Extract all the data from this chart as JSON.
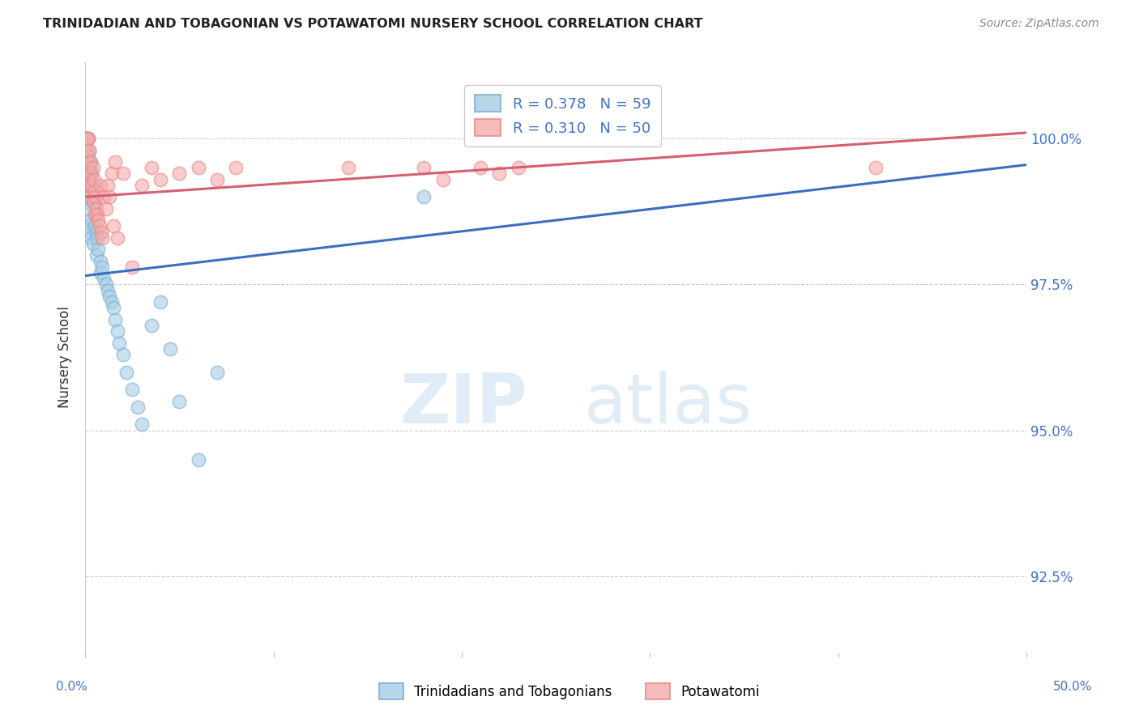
{
  "title": "TRINIDADIAN AND TOBAGONIAN VS POTAWATOMI NURSERY SCHOOL CORRELATION CHART",
  "source": "Source: ZipAtlas.com",
  "ylabel": "Nursery School",
  "ytick_vals": [
    92.5,
    95.0,
    97.5,
    100.0
  ],
  "xmin": 0.0,
  "xmax": 50.0,
  "ymin": 91.2,
  "ymax": 101.3,
  "legend_blue_label": "Trinidadians and Tobagonians",
  "legend_pink_label": "Potawatomi",
  "legend_R_blue": "R = 0.378",
  "legend_N_blue": "N = 59",
  "legend_R_pink": "R = 0.310",
  "legend_N_pink": "N = 50",
  "blue_color": "#a8cce4",
  "pink_color": "#f4aaaa",
  "blue_edge_color": "#7bafd4",
  "pink_edge_color": "#e88888",
  "blue_line_color": "#3a6fbf",
  "pink_line_color": "#d45f72",
  "blue_scatter_x": [
    0.05,
    0.05,
    0.05,
    0.05,
    0.05,
    0.1,
    0.1,
    0.1,
    0.1,
    0.15,
    0.15,
    0.15,
    0.15,
    0.2,
    0.2,
    0.2,
    0.2,
    0.25,
    0.25,
    0.25,
    0.3,
    0.3,
    0.3,
    0.35,
    0.35,
    0.4,
    0.4,
    0.45,
    0.5,
    0.5,
    0.55,
    0.6,
    0.6,
    0.65,
    0.7,
    0.8,
    0.8,
    0.9,
    1.0,
    1.1,
    1.2,
    1.3,
    1.4,
    1.5,
    1.6,
    1.7,
    1.8,
    2.0,
    2.2,
    2.5,
    2.8,
    3.0,
    3.5,
    4.0,
    4.5,
    5.0,
    6.0,
    7.0,
    18.0
  ],
  "blue_scatter_y": [
    100.0,
    99.8,
    99.6,
    99.3,
    99.0,
    100.0,
    99.7,
    99.4,
    99.1,
    100.0,
    99.5,
    99.2,
    98.9,
    99.8,
    99.3,
    98.8,
    98.5,
    99.5,
    99.0,
    98.4,
    99.6,
    99.1,
    98.3,
    99.4,
    98.6,
    99.2,
    98.2,
    98.9,
    99.0,
    98.5,
    98.7,
    98.4,
    98.0,
    98.3,
    98.1,
    97.9,
    97.7,
    97.8,
    97.6,
    97.5,
    97.4,
    97.3,
    97.2,
    97.1,
    96.9,
    96.7,
    96.5,
    96.3,
    96.0,
    95.7,
    95.4,
    95.1,
    96.8,
    97.2,
    96.4,
    95.5,
    94.5,
    96.0,
    99.0
  ],
  "pink_scatter_x": [
    0.05,
    0.05,
    0.1,
    0.1,
    0.15,
    0.15,
    0.2,
    0.2,
    0.25,
    0.25,
    0.3,
    0.3,
    0.35,
    0.4,
    0.4,
    0.45,
    0.5,
    0.5,
    0.55,
    0.6,
    0.65,
    0.7,
    0.75,
    0.8,
    0.85,
    0.9,
    1.0,
    1.1,
    1.2,
    1.3,
    1.4,
    1.5,
    1.6,
    1.7,
    2.0,
    2.5,
    3.0,
    3.5,
    4.0,
    5.0,
    6.0,
    7.0,
    8.0,
    14.0,
    18.0,
    19.0,
    21.0,
    22.0,
    23.0,
    42.0
  ],
  "pink_scatter_y": [
    100.0,
    99.8,
    100.0,
    99.7,
    100.0,
    99.5,
    99.8,
    99.3,
    99.6,
    99.2,
    99.4,
    99.0,
    99.2,
    99.5,
    98.9,
    99.3,
    99.1,
    98.7,
    99.0,
    98.8,
    98.7,
    98.6,
    98.5,
    99.2,
    98.4,
    98.3,
    99.0,
    98.8,
    99.2,
    99.0,
    99.4,
    98.5,
    99.6,
    98.3,
    99.4,
    97.8,
    99.2,
    99.5,
    99.3,
    99.4,
    99.5,
    99.3,
    99.5,
    99.5,
    99.5,
    99.3,
    99.5,
    99.4,
    99.5,
    99.5
  ],
  "blue_trend_x": [
    0.0,
    50.0
  ],
  "blue_trend_y": [
    97.65,
    99.55
  ],
  "pink_trend_x": [
    0.0,
    50.0
  ],
  "pink_trend_y": [
    99.0,
    100.1
  ],
  "watermark_zip": "ZIP",
  "watermark_atlas": "atlas",
  "background_color": "#ffffff",
  "grid_color": "#cccccc",
  "title_color": "#222222",
  "axis_tick_color": "#4472c4"
}
